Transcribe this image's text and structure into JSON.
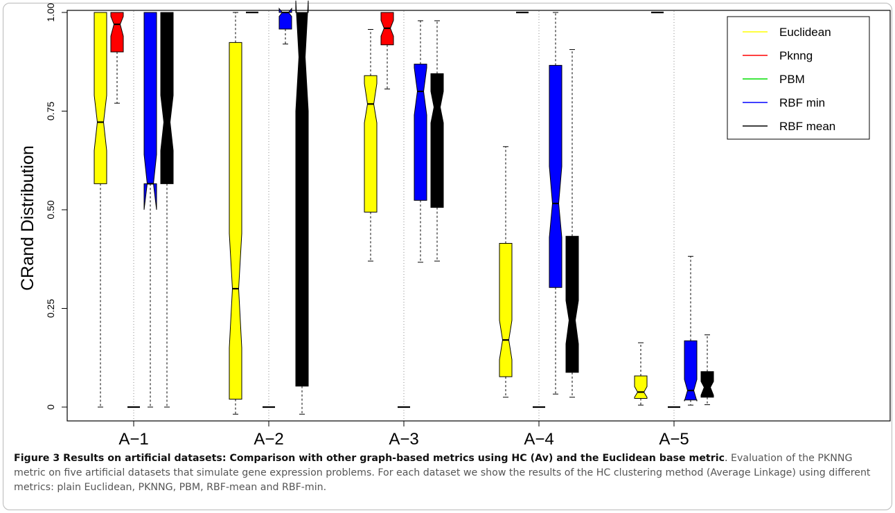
{
  "chart_data": {
    "type": "box",
    "ylabel": "CRand Distribution",
    "ylim": [
      0,
      1
    ],
    "yticks": [
      "0",
      "0.25",
      "0.50",
      "0.75",
      "1.00"
    ],
    "categories": [
      "A−1",
      "A−2",
      "A−3",
      "A−4",
      "A−5"
    ],
    "legend": {
      "position": "top-right"
    },
    "series": [
      {
        "name": "Euclidean",
        "color": "#ffff00",
        "stats": [
          {
            "min": 0.0,
            "q1": 0.566,
            "median": 0.722,
            "q3": 1.0,
            "max": 1.0,
            "notch": [
              0.65,
              0.79
            ]
          },
          {
            "min": -0.018,
            "q1": 0.02,
            "median": 0.3,
            "q3": 0.924,
            "max": 1.0,
            "notch": [
              0.15,
              0.44
            ]
          },
          {
            "min": 0.37,
            "q1": 0.494,
            "median": 0.768,
            "q3": 0.84,
            "max": 0.957,
            "notch": [
              0.72,
              0.82
            ]
          },
          {
            "min": 0.025,
            "q1": 0.077,
            "median": 0.17,
            "q3": 0.415,
            "max": 0.66,
            "notch": [
              0.12,
              0.22
            ]
          },
          {
            "min": 0.005,
            "q1": 0.022,
            "median": 0.038,
            "q3": 0.079,
            "max": 0.163,
            "notch": [
              0.025,
              0.052
            ]
          }
        ]
      },
      {
        "name": "Pknng",
        "color": "#ff0000",
        "stats": [
          {
            "min": 0.77,
            "q1": 0.9,
            "median": 0.97,
            "q3": 1.0,
            "max": 1.0,
            "notch": [
              0.94,
              0.99
            ]
          },
          {
            "min": 1.0,
            "q1": 1.0,
            "median": 1.0,
            "q3": 1.0,
            "max": 1.0
          },
          {
            "min": 0.806,
            "q1": 0.918,
            "median": 0.96,
            "q3": 1.0,
            "max": 1.0,
            "notch": [
              0.94,
              0.98
            ]
          },
          {
            "min": 1.0,
            "q1": 1.0,
            "median": 1.0,
            "q3": 1.0,
            "max": 1.0
          },
          {
            "min": 1.0,
            "q1": 1.0,
            "median": 1.0,
            "q3": 1.0,
            "max": 1.0
          }
        ]
      },
      {
        "name": "PBM",
        "color": "#00dd00",
        "stats": [
          {
            "min": 0.0,
            "q1": 0.0,
            "median": 0.0,
            "q3": 0.0,
            "max": 0.0
          },
          {
            "min": 0.0,
            "q1": 0.0,
            "median": 0.0,
            "q3": 0.0,
            "max": 0.0
          },
          {
            "min": 0.0,
            "q1": 0.0,
            "median": 0.0,
            "q3": 0.0,
            "max": 0.0
          },
          {
            "min": 0.0,
            "q1": 0.0,
            "median": 0.0,
            "q3": 0.0,
            "max": 0.0
          },
          {
            "min": 0.0,
            "q1": 0.0,
            "median": 0.0,
            "q3": 0.0,
            "max": 0.0
          }
        ]
      },
      {
        "name": "RBF min",
        "color": "#0000ff",
        "stats": [
          {
            "min": 0.0,
            "q1": 0.566,
            "median": 0.566,
            "q3": 1.0,
            "max": 1.0,
            "notch": [
              0.5,
              0.64
            ]
          },
          {
            "min": 0.92,
            "q1": 0.958,
            "median": 1.0,
            "q3": 1.0,
            "max": 1.0,
            "notch": [
              0.99,
              1.01
            ]
          },
          {
            "min": 0.367,
            "q1": 0.524,
            "median": 0.8,
            "q3": 0.869,
            "max": 0.979,
            "notch": [
              0.74,
              0.86
            ]
          },
          {
            "min": 0.033,
            "q1": 0.303,
            "median": 0.516,
            "q3": 0.866,
            "max": 1.0,
            "notch": [
              0.43,
              0.61
            ]
          },
          {
            "min": 0.005,
            "q1": 0.018,
            "median": 0.042,
            "q3": 0.168,
            "max": 0.382,
            "notch": [
              0.015,
              0.07
            ]
          }
        ]
      },
      {
        "name": "RBF mean",
        "color": "#000000",
        "stats": [
          {
            "min": 0.0,
            "q1": 0.566,
            "median": 0.722,
            "q3": 1.0,
            "max": 1.0,
            "notch": [
              0.65,
              0.79
            ]
          },
          {
            "min": -0.018,
            "q1": 0.053,
            "median": 0.887,
            "q3": 1.0,
            "max": 1.0,
            "notch": [
              0.75,
              1.03
            ]
          },
          {
            "min": 0.37,
            "q1": 0.506,
            "median": 0.76,
            "q3": 0.845,
            "max": 0.979,
            "notch": [
              0.72,
              0.8
            ]
          },
          {
            "min": 0.025,
            "q1": 0.088,
            "median": 0.22,
            "q3": 0.433,
            "max": 0.906,
            "notch": [
              0.16,
              0.27
            ]
          },
          {
            "min": 0.006,
            "q1": 0.025,
            "median": 0.05,
            "q3": 0.09,
            "max": 0.183,
            "notch": [
              0.03,
              0.065
            ]
          }
        ]
      }
    ]
  },
  "caption": {
    "lead": "Figure 3 Results on artificial datasets: Comparison with other graph-based metrics using HC (Av) and the Euclidean base metric",
    "lead_end": ".",
    "body": " Evaluation of the PKNNG metric on five artificial datasets that simulate gene expression problems. For each dataset we show the results of the HC clustering method (Average Linkage) using different metrics: plain Euclidean, PKNNG, PBM, RBF-mean and RBF-min."
  }
}
